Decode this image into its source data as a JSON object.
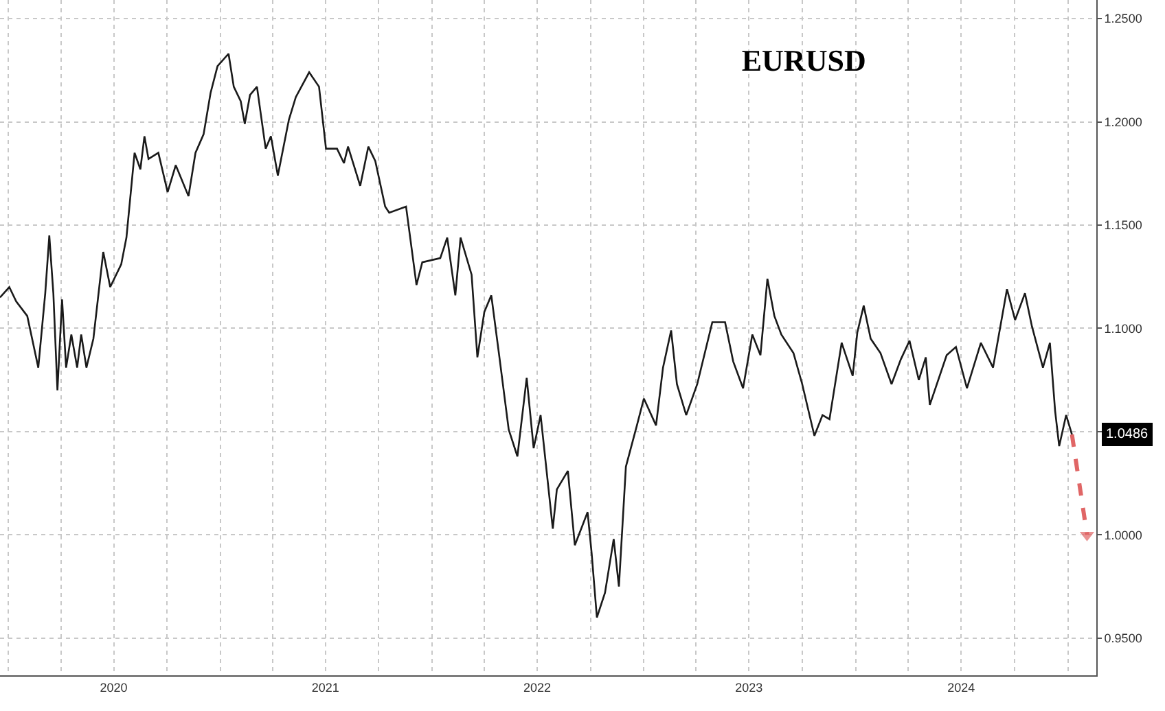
{
  "chart_data": {
    "type": "line",
    "title": "EURUSD",
    "series": [
      {
        "color": "#1a1a1a",
        "x": [
          "2019-12-18",
          "2020-01-03",
          "2020-01-15",
          "2020-02-03",
          "2020-02-22",
          "2020-03-05",
          "2020-03-12",
          "2020-03-19",
          "2020-03-26",
          "2020-04-03",
          "2020-04-10",
          "2020-04-19",
          "2020-04-29",
          "2020-05-06",
          "2020-05-15",
          "2020-05-27",
          "2020-06-13",
          "2020-06-25",
          "2020-07-14",
          "2020-07-23",
          "2020-08-06",
          "2020-08-16",
          "2020-08-23",
          "2020-08-30",
          "2020-09-16",
          "2020-10-02",
          "2020-10-16",
          "2020-11-07",
          "2020-11-19",
          "2020-12-03",
          "2020-12-15",
          "2020-12-27",
          "2021-01-15",
          "2021-01-24",
          "2021-02-05",
          "2021-02-12",
          "2021-02-21",
          "2021-03-05",
          "2021-03-20",
          "2021-03-29",
          "2021-04-10",
          "2021-04-29",
          "2021-05-11",
          "2021-06-03",
          "2021-06-20",
          "2021-06-22",
          "2021-07-02",
          "2021-07-21",
          "2021-08-02",
          "2021-08-09",
          "2021-08-30",
          "2021-09-13",
          "2021-09-25",
          "2021-10-12",
          "2021-10-19",
          "2021-11-17",
          "2021-12-05",
          "2021-12-15",
          "2022-01-15",
          "2022-01-27",
          "2022-02-10",
          "2022-02-19",
          "2022-03-10",
          "2022-03-20",
          "2022-04-01",
          "2022-04-13",
          "2022-04-27",
          "2022-05-13",
          "2022-05-28",
          "2022-06-13",
          "2022-06-25",
          "2022-07-07",
          "2022-07-28",
          "2022-08-04",
          "2022-08-23",
          "2022-09-04",
          "2022-09-26",
          "2022-10-03",
          "2022-10-12",
          "2022-10-26",
          "2022-11-10",
          "2022-11-19",
          "2022-12-01",
          "2022-12-20",
          "2023-01-01",
          "2023-01-22",
          "2023-02-03",
          "2023-02-17",
          "2023-02-27",
          "2023-03-15",
          "2023-04-03",
          "2023-04-29",
          "2023-05-21",
          "2023-06-04",
          "2023-06-21",
          "2023-07-07",
          "2023-07-21",
          "2023-08-02",
          "2023-08-14",
          "2023-08-26",
          "2023-09-16",
          "2023-10-01",
          "2023-10-22",
          "2023-11-05",
          "2023-11-17",
          "2023-12-08",
          "2023-12-27",
          "2024-01-04",
          "2024-01-15",
          "2024-01-27",
          "2024-02-13",
          "2024-03-03",
          "2024-03-19",
          "2024-04-03",
          "2024-04-19",
          "2024-05-01",
          "2024-05-08",
          "2024-06-06",
          "2024-06-22",
          "2024-07-11",
          "2024-08-04",
          "2024-08-25",
          "2024-09-18",
          "2024-10-02",
          "2024-10-19",
          "2024-10-31",
          "2024-11-19",
          "2024-12-01",
          "2024-12-10",
          "2024-12-17",
          "2024-12-29",
          "2025-01-08"
        ],
        "values": [
          1.115,
          1.12,
          1.113,
          1.106,
          1.081,
          1.117,
          1.145,
          1.117,
          1.07,
          1.114,
          1.081,
          1.097,
          1.081,
          1.097,
          1.081,
          1.095,
          1.137,
          1.12,
          1.131,
          1.144,
          1.185,
          1.177,
          1.193,
          1.182,
          1.185,
          1.166,
          1.179,
          1.164,
          1.185,
          1.194,
          1.214,
          1.227,
          1.233,
          1.217,
          1.21,
          1.199,
          1.213,
          1.217,
          1.187,
          1.193,
          1.174,
          1.201,
          1.212,
          1.224,
          1.217,
          1.212,
          1.187,
          1.187,
          1.18,
          1.188,
          1.169,
          1.188,
          1.181,
          1.159,
          1.156,
          1.159,
          1.121,
          1.132,
          1.134,
          1.144,
          1.116,
          1.144,
          1.126,
          1.086,
          1.108,
          1.116,
          1.086,
          1.051,
          1.038,
          1.076,
          1.042,
          1.058,
          1.003,
          1.022,
          1.031,
          0.995,
          1.011,
          0.991,
          0.96,
          0.972,
          0.998,
          0.975,
          1.033,
          1.053,
          1.066,
          1.053,
          1.081,
          1.099,
          1.073,
          1.058,
          1.073,
          1.103,
          1.103,
          1.084,
          1.071,
          1.097,
          1.087,
          1.124,
          1.106,
          1.097,
          1.088,
          1.073,
          1.048,
          1.058,
          1.056,
          1.093,
          1.077,
          1.098,
          1.111,
          1.095,
          1.088,
          1.073,
          1.085,
          1.094,
          1.075,
          1.086,
          1.063,
          1.087,
          1.091,
          1.071,
          1.093,
          1.081,
          1.119,
          1.104,
          1.117,
          1.101,
          1.081,
          1.093,
          1.06,
          1.043,
          1.058,
          1.0486
        ]
      },
      {
        "color": "#e06666",
        "x": [
          "2025-01-08",
          "2025-02-03"
        ],
        "values": [
          1.0486,
          1.0
        ],
        "line_style": "dashed",
        "marker": "triangle"
      }
    ],
    "annotations": [
      "1.0486"
    ],
    "xlim": [
      "2019-12-18",
      "2025-02-19"
    ],
    "xticks": [
      {
        "value": "2020-01-01",
        "label": null
      },
      {
        "value": "2020-04-01",
        "label": null
      },
      {
        "value": "2020-07-01",
        "label": "2020"
      },
      {
        "value": "2020-10-01",
        "label": null
      },
      {
        "value": "2021-01-01",
        "label": null
      },
      {
        "value": "2021-04-01",
        "label": null
      },
      {
        "value": "2021-07-01",
        "label": "2021"
      },
      {
        "value": "2021-10-01",
        "label": null
      },
      {
        "value": "2022-01-01",
        "label": null
      },
      {
        "value": "2022-04-01",
        "label": null
      },
      {
        "value": "2022-07-01",
        "label": "2022"
      },
      {
        "value": "2022-10-01",
        "label": null
      },
      {
        "value": "2023-01-01",
        "label": null
      },
      {
        "value": "2023-04-01",
        "label": null
      },
      {
        "value": "2023-07-01",
        "label": "2023"
      },
      {
        "value": "2023-10-01",
        "label": null
      },
      {
        "value": "2024-01-01",
        "label": null
      },
      {
        "value": "2024-04-01",
        "label": null
      },
      {
        "value": "2024-07-01",
        "label": "2024"
      },
      {
        "value": "2024-10-01",
        "label": null
      },
      {
        "value": "2025-01-01",
        "label": null
      }
    ],
    "ylim": [
      0.932,
      1.259
    ],
    "yticks": [
      {
        "value": 0.95,
        "label": "0.9500"
      },
      {
        "value": 1.0,
        "label": "1.0000"
      },
      {
        "value": 1.05,
        "label": null
      },
      {
        "value": 1.1,
        "label": "1.1000"
      },
      {
        "value": 1.15,
        "label": "1.1500"
      },
      {
        "value": 1.2,
        "label": "1.2000"
      },
      {
        "value": 1.25,
        "label": "1.2500"
      }
    ],
    "grid": true
  }
}
